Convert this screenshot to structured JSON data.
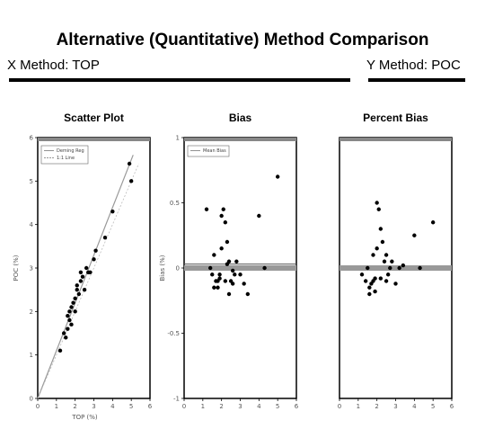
{
  "header": {
    "title": "Alternative (Quantitative) Method Comparison",
    "x_method": "X Method: TOP",
    "y_method": "Y Method: POC"
  },
  "chart_data": [
    {
      "type": "scatter",
      "title": "Scatter Plot",
      "xlabel": "TOP (%)",
      "ylabel": "POC (%)",
      "xlim": [
        0,
        6
      ],
      "ylim": [
        0,
        6
      ],
      "xticks": [
        "0",
        "1",
        "2",
        "3",
        "4",
        "5",
        "6"
      ],
      "yticks": [
        "0",
        "1",
        "2",
        "3",
        "4",
        "5",
        "6"
      ],
      "legend": [
        "Deming Reg",
        "1:1 Line"
      ],
      "legend_position": "top-left",
      "x": [
        1.2,
        1.4,
        1.5,
        1.6,
        1.6,
        1.7,
        1.7,
        1.8,
        1.8,
        1.9,
        2.0,
        2.0,
        2.1,
        2.1,
        2.2,
        2.3,
        2.3,
        2.4,
        2.5,
        2.6,
        2.7,
        2.8,
        3.0,
        3.1,
        3.6,
        4.0,
        4.9,
        5.0
      ],
      "y": [
        1.1,
        1.5,
        1.4,
        1.6,
        1.9,
        1.8,
        2.0,
        1.7,
        2.1,
        2.2,
        2.3,
        2.0,
        2.5,
        2.6,
        2.4,
        2.7,
        2.9,
        2.8,
        2.5,
        3.0,
        2.9,
        2.9,
        3.2,
        3.4,
        3.7,
        4.3,
        5.4,
        5.0
      ],
      "fit_line": [
        [
          0,
          0
        ],
        [
          5.1,
          5.6
        ]
      ]
    },
    {
      "type": "scatter",
      "title": "Bias",
      "xlabel": "",
      "ylabel": "Bias (%)",
      "xlim": [
        0,
        6
      ],
      "ylim": [
        -1,
        1
      ],
      "xticks": [
        "0",
        "1",
        "2",
        "3",
        "4",
        "5",
        "6"
      ],
      "yticks": [
        "1",
        "0.5",
        "0",
        "-0.5",
        "-1"
      ],
      "legend": [
        "Mean Bias"
      ],
      "legend_position": "top-left",
      "mean_bias": 0.03,
      "x": [
        1.2,
        1.4,
        1.5,
        1.6,
        1.7,
        1.8,
        1.9,
        2.0,
        2.1,
        2.2,
        2.3,
        2.4,
        2.5,
        2.6,
        2.7,
        2.8,
        1.6,
        1.8,
        2.0,
        2.2,
        2.4,
        3.0,
        3.2,
        3.4,
        4.0,
        4.3,
        5.0,
        1.9,
        2.3,
        2.6
      ],
      "y": [
        0.45,
        0.0,
        -0.05,
        0.1,
        -0.1,
        -0.15,
        -0.05,
        0.4,
        0.45,
        0.35,
        0.2,
        0.05,
        -0.1,
        -0.12,
        -0.05,
        0.05,
        -0.15,
        -0.1,
        0.15,
        -0.1,
        -0.2,
        -0.05,
        -0.12,
        -0.2,
        0.4,
        0.0,
        0.7,
        -0.08,
        0.03,
        -0.02
      ]
    },
    {
      "type": "scatter",
      "title": "Percent Bias",
      "xlabel": "",
      "ylabel": "",
      "xlim": [
        0,
        6
      ],
      "ylim": [
        -1,
        1
      ],
      "xticks": [
        "0",
        "1",
        "2",
        "3",
        "4",
        "5",
        "6"
      ],
      "yticks": [],
      "x": [
        1.2,
        1.4,
        1.5,
        1.6,
        1.7,
        1.8,
        1.9,
        2.0,
        2.1,
        2.2,
        2.3,
        2.4,
        2.5,
        2.6,
        2.7,
        2.8,
        1.6,
        1.8,
        2.0,
        2.2,
        3.0,
        3.2,
        3.4,
        4.0,
        4.3,
        5.0,
        1.9,
        2.5
      ],
      "y": [
        -0.05,
        -0.1,
        0.0,
        -0.15,
        -0.12,
        0.1,
        -0.18,
        0.5,
        0.45,
        0.3,
        0.2,
        0.05,
        -0.1,
        -0.05,
        0.0,
        0.05,
        -0.2,
        -0.1,
        0.15,
        -0.08,
        -0.12,
        0.0,
        0.02,
        0.25,
        0.0,
        0.35,
        -0.08,
        0.1
      ]
    }
  ]
}
